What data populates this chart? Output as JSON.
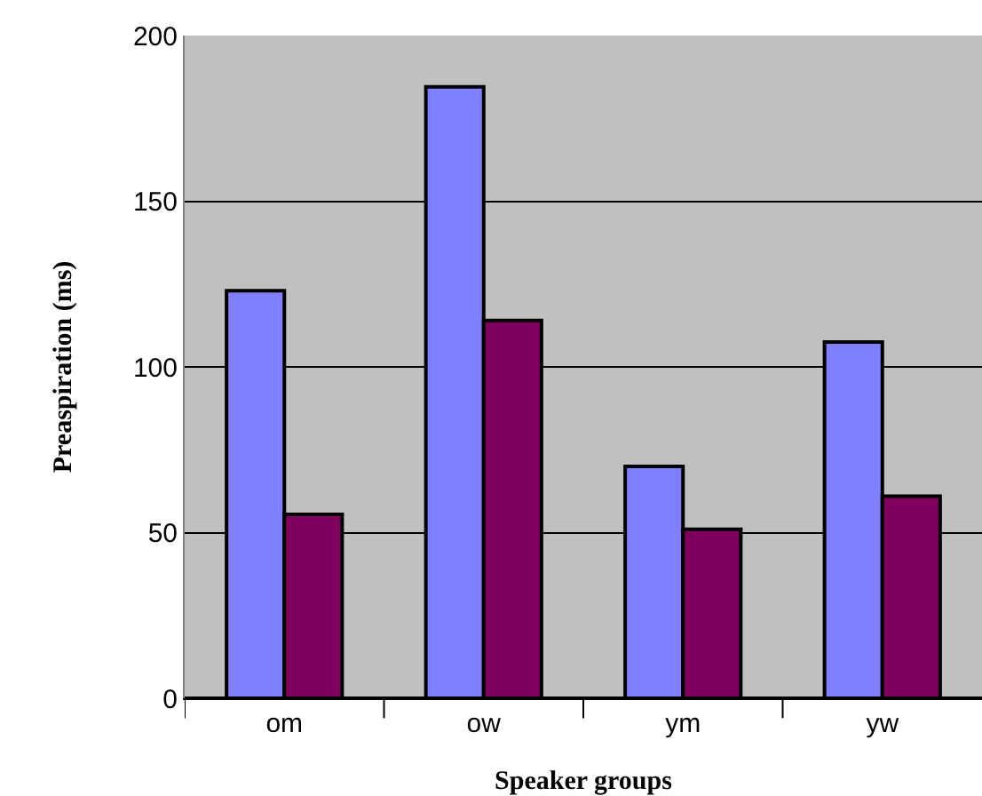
{
  "chart_data": {
    "type": "bar",
    "xlabel": "Speaker groups",
    "ylabel": "Preaspiration (ms)",
    "categories": [
      "om",
      "ow",
      "ym",
      "yw"
    ],
    "series": [
      {
        "color": "#8080ff",
        "values": [
          123,
          184.5,
          70,
          107.5
        ]
      },
      {
        "color": "#800060",
        "values": [
          55.5,
          114,
          51,
          61
        ]
      }
    ],
    "ylim": [
      0,
      200
    ],
    "yticks": [
      0,
      50,
      100,
      150,
      200
    ],
    "grid": "y"
  }
}
